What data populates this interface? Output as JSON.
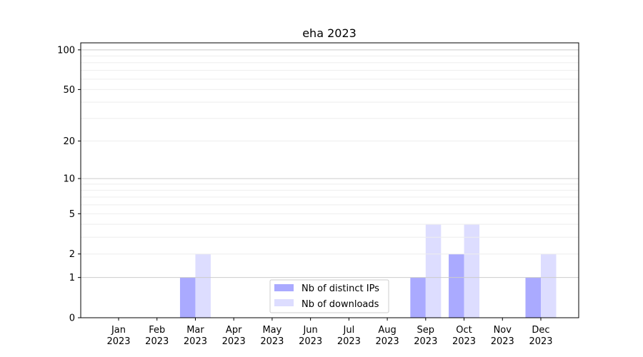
{
  "chart_data": {
    "type": "bar",
    "title": "eha 2023",
    "xlabel": "",
    "ylabel": "",
    "yscale": "log(1+y)",
    "ylim": [
      0,
      113
    ],
    "grid": true,
    "legend_placement": "lower center",
    "categories": [
      "Jan\n2023",
      "Feb\n2023",
      "Mar\n2023",
      "Apr\n2023",
      "May\n2023",
      "Jun\n2023",
      "Jul\n2023",
      "Aug\n2023",
      "Sep\n2023",
      "Oct\n2023",
      "Nov\n2023",
      "Dec\n2023"
    ],
    "yticks": [
      0,
      1,
      2,
      5,
      10,
      20,
      50,
      100
    ],
    "series": [
      {
        "name": "Nb of distinct IPs",
        "color": "#aaaaff",
        "values": [
          0,
          0,
          1,
          0,
          0,
          0,
          0,
          0,
          1,
          2,
          0,
          1
        ]
      },
      {
        "name": "Nb of downloads",
        "color": "#ddddff",
        "values": [
          0,
          0,
          2,
          0,
          0,
          0,
          0,
          0,
          4,
          4,
          0,
          2
        ]
      }
    ]
  }
}
